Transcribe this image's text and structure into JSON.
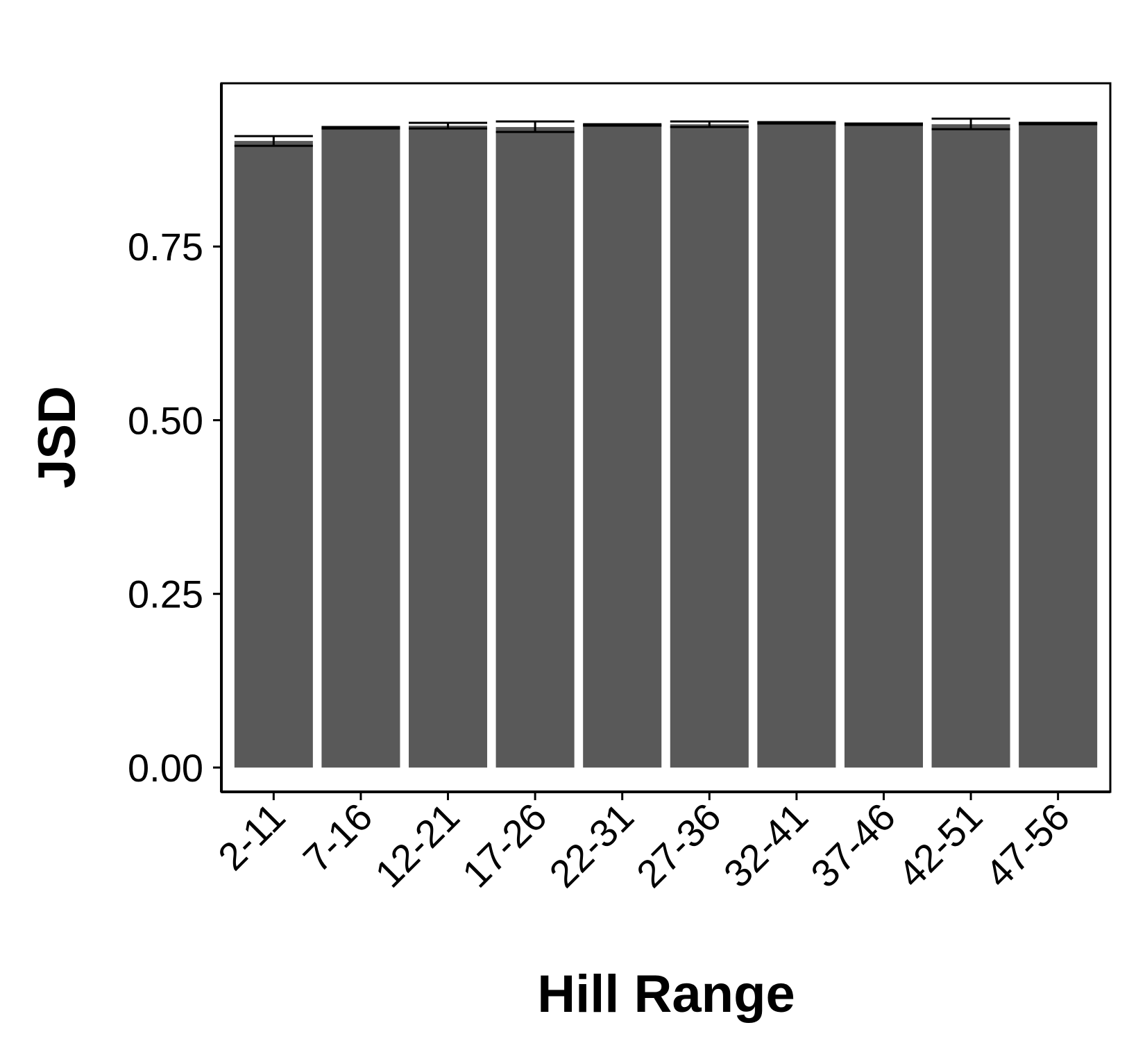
{
  "chart_data": {
    "type": "bar",
    "title": "",
    "xlabel": "Hill Range",
    "ylabel": "JSD",
    "categories": [
      "2-11",
      "7-16",
      "12-21",
      "17-26",
      "22-31",
      "27-36",
      "32-41",
      "37-46",
      "42-51",
      "47-56"
    ],
    "values": [
      0.902,
      0.921,
      0.924,
      0.922,
      0.925,
      0.926,
      0.928,
      0.926,
      0.926,
      0.927
    ],
    "error_low": [
      0.895,
      0.92,
      0.92,
      0.915,
      0.924,
      0.922,
      0.927,
      0.925,
      0.919,
      0.926
    ],
    "error_high": [
      0.909,
      0.922,
      0.928,
      0.93,
      0.926,
      0.93,
      0.929,
      0.927,
      0.934,
      0.928
    ],
    "ylim": [
      -0.035,
      0.985
    ],
    "yticks": [
      0.0,
      0.25,
      0.5,
      0.75
    ],
    "ytick_labels": [
      "0.00",
      "0.25",
      "0.50",
      "0.75"
    ],
    "grid": false,
    "legend": "none",
    "bar_color": "#595959",
    "axis_color": "#000000"
  }
}
